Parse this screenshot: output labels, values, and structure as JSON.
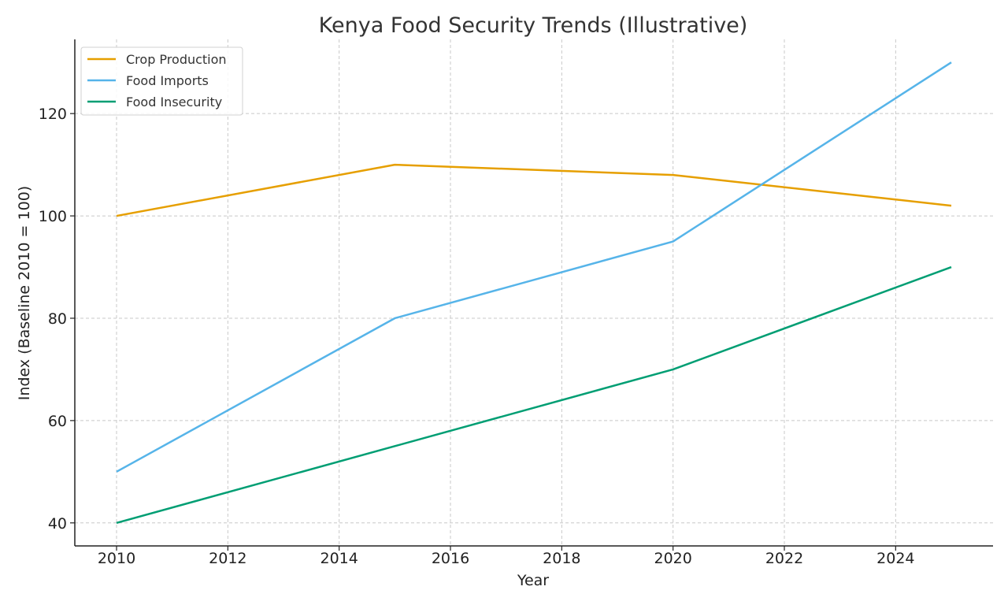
{
  "chart_data": {
    "type": "line",
    "title": "Kenya Food Security Trends (Illustrative)",
    "xlabel": "Year",
    "ylabel": "Index (Baseline 2010 = 100)",
    "x": [
      2010,
      2015,
      2020,
      2025
    ],
    "xlim": [
      2009.25,
      2025.75
    ],
    "ylim": [
      35.5,
      134.5
    ],
    "xticks": [
      2010,
      2012,
      2014,
      2016,
      2018,
      2020,
      2022,
      2024
    ],
    "yticks": [
      40,
      60,
      80,
      100,
      120
    ],
    "grid": true,
    "legend_position": "top-left",
    "series": [
      {
        "name": "Crop Production",
        "color": "#E69F00",
        "values": [
          100,
          110,
          108,
          102
        ]
      },
      {
        "name": "Food Imports",
        "color": "#56B4E9",
        "values": [
          50,
          80,
          95,
          130
        ]
      },
      {
        "name": "Food Insecurity",
        "color": "#009E73",
        "values": [
          40,
          55,
          70,
          90
        ]
      }
    ]
  }
}
